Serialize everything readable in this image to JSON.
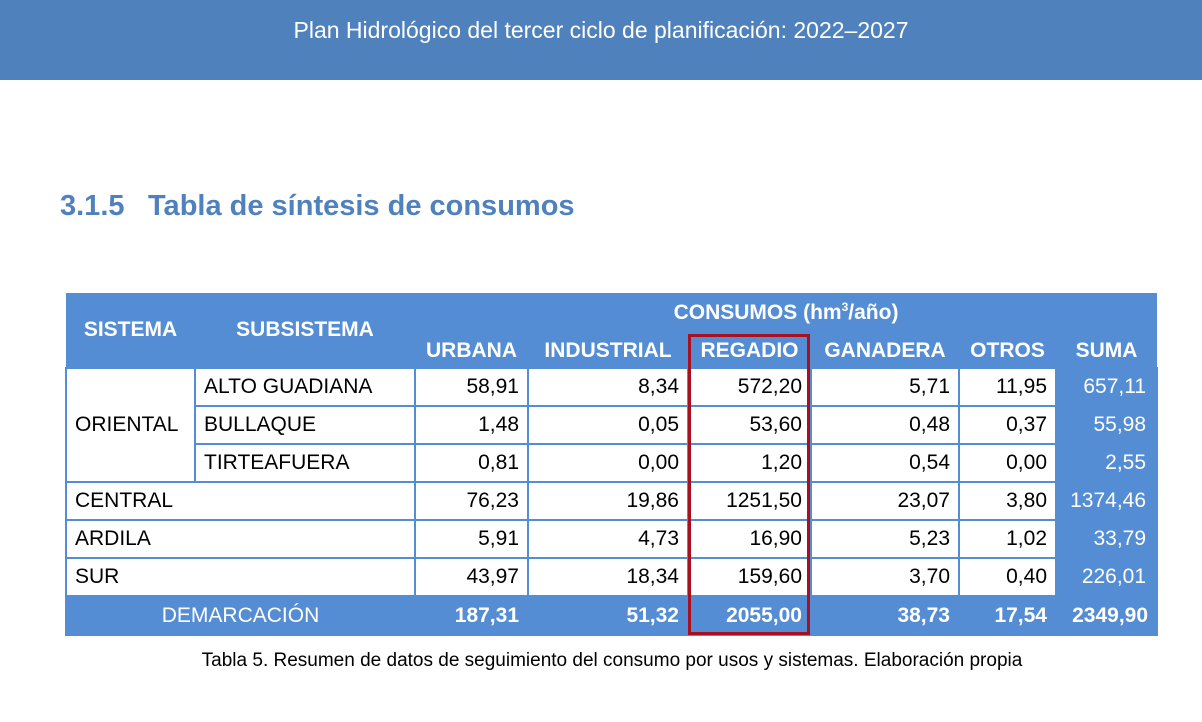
{
  "banner": {
    "title": "Plan Hidrológico del tercer ciclo de planificación: 2022–2027"
  },
  "section": {
    "number": "3.1.5",
    "title": "Tabla de síntesis de consumos"
  },
  "table": {
    "header": {
      "sistema": "SISTEMA",
      "subsistema": "SUBSISTEMA",
      "consumos_prefix": "CONSUMOS (hm",
      "consumos_sup": "3",
      "consumos_suffix": "/año)",
      "urbana": "URBANA",
      "industrial": "INDUSTRIAL",
      "regadio": "REGADIO",
      "ganadera": "GANADERA",
      "otros": "OTROS",
      "suma": "SUMA"
    },
    "oriental": {
      "label": "ORIENTAL",
      "rows": [
        {
          "subsistema": "ALTO GUADIANA",
          "urbana": "58,91",
          "industrial": "8,34",
          "regadio": "572,20",
          "ganadera": "5,71",
          "otros": "11,95",
          "suma": "657,11"
        },
        {
          "subsistema": "BULLAQUE",
          "urbana": "1,48",
          "industrial": "0,05",
          "regadio": "53,60",
          "ganadera": "0,48",
          "otros": "0,37",
          "suma": "55,98"
        },
        {
          "subsistema": "TIRTEAFUERA",
          "urbana": "0,81",
          "industrial": "0,00",
          "regadio": "1,20",
          "ganadera": "0,54",
          "otros": "0,00",
          "suma": "2,55"
        }
      ]
    },
    "systems": [
      {
        "sistema": "CENTRAL",
        "urbana": "76,23",
        "industrial": "19,86",
        "regadio": "1251,50",
        "ganadera": "23,07",
        "otros": "3,80",
        "suma": "1374,46"
      },
      {
        "sistema": "ARDILA",
        "urbana": "5,91",
        "industrial": "4,73",
        "regadio": "16,90",
        "ganadera": "5,23",
        "otros": "1,02",
        "suma": "33,79"
      },
      {
        "sistema": "SUR",
        "urbana": "43,97",
        "industrial": "18,34",
        "regadio": "159,60",
        "ganadera": "3,70",
        "otros": "0,40",
        "suma": "226,01"
      }
    ],
    "total": {
      "label": "DEMARCACIÓN",
      "urbana": "187,31",
      "industrial": "51,32",
      "regadio": "2055,00",
      "ganadera": "38,73",
      "otros": "17,54",
      "suma": "2349,90"
    }
  },
  "caption": "Tabla 5. Resumen de datos de seguimiento del consumo por usos y sistemas. Elaboración propia",
  "colors": {
    "banner": "#4f81bd",
    "heading": "#4f81bd",
    "table_header": "#548dd4",
    "highlight_border": "#a8101f"
  }
}
